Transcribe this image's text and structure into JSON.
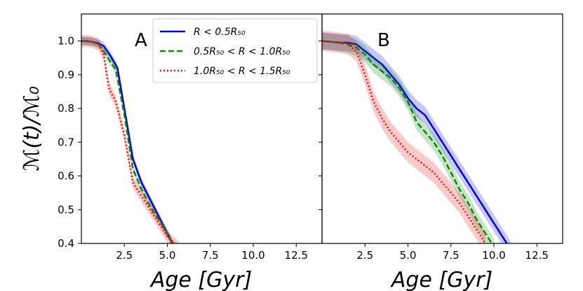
{
  "chart_data": {
    "type": "line",
    "ylabel": "ℳ(t)/ℳ₀",
    "legend": {
      "placement": "top-right of panel A",
      "entries": [
        {
          "label": "R < 0.5R₅₀",
          "color": "#0000dd",
          "style": "solid"
        },
        {
          "label": "0.5R₅₀ < R < 1.0R₅₀",
          "color": "#0a8a0a",
          "style": "dashed"
        },
        {
          "label": "1.0R₅₀ < R < 1.5R₅₀",
          "color": "#ee1111",
          "style": "dotted"
        }
      ]
    },
    "panels": [
      {
        "letter": "A",
        "xlabel": "Age [Gyr]",
        "xlim": [
          0,
          14
        ],
        "ylim": [
          0.4,
          1.08
        ],
        "xticks": [
          "2.5",
          "5.0",
          "7.5",
          "10.0",
          "12.5"
        ],
        "xtick_values": [
          2.5,
          5.0,
          7.5,
          10.0,
          12.5
        ],
        "yticks": [
          "0.4",
          "0.5",
          "0.6",
          "0.7",
          "0.8",
          "0.9",
          "1.0"
        ],
        "ytick_values": [
          0.4,
          0.5,
          0.6,
          0.7,
          0.8,
          0.9,
          1.0
        ],
        "series": [
          {
            "name": "R < 0.5R50",
            "color": "#0000dd",
            "dash": "solid",
            "band": 0.012,
            "x": [
              0,
              0.3,
              0.6,
              1.0,
              1.3,
              1.7,
              2.1,
              2.5,
              3.0,
              3.5,
              4.0,
              4.5,
              5.0,
              5.3,
              5.6
            ],
            "y": [
              1.0,
              1.0,
              0.998,
              0.993,
              0.985,
              0.955,
              0.92,
              0.8,
              0.65,
              0.58,
              0.53,
              0.48,
              0.43,
              0.4,
              0.38
            ]
          },
          {
            "name": "0.5R50 < R < 1.0R50",
            "color": "#0a8a0a",
            "dash": "dashed",
            "band": 0.012,
            "x": [
              0,
              0.3,
              0.6,
              1.0,
              1.3,
              1.6,
              2.0,
              2.5,
              3.0,
              3.5,
              4.0,
              4.5,
              5.0,
              5.3,
              5.6
            ],
            "y": [
              1.0,
              1.0,
              0.998,
              0.99,
              0.97,
              0.945,
              0.915,
              0.78,
              0.62,
              0.56,
              0.51,
              0.47,
              0.43,
              0.4,
              0.38
            ]
          },
          {
            "name": "1.0R50 < R < 1.5R50",
            "color": "#ee1111",
            "dash": "dotted",
            "band": 0.018,
            "x": [
              0,
              0.3,
              0.6,
              1.0,
              1.3,
              1.6,
              2.0,
              2.5,
              3.0,
              3.5,
              4.0,
              4.5,
              5.0,
              5.4,
              5.8
            ],
            "y": [
              1.0,
              1.0,
              0.998,
              0.99,
              0.96,
              0.86,
              0.82,
              0.72,
              0.58,
              0.54,
              0.5,
              0.46,
              0.42,
              0.4,
              0.38
            ]
          }
        ]
      },
      {
        "letter": "B",
        "xlabel": "Age [Gyr]",
        "xlim": [
          0,
          14
        ],
        "ylim": [
          0.4,
          1.08
        ],
        "xticks": [
          "2.5",
          "5.0",
          "7.5",
          "10.0",
          "12.5"
        ],
        "xtick_values": [
          2.5,
          5.0,
          7.5,
          10.0,
          12.5
        ],
        "yticks": [],
        "ytick_values": [
          0.4,
          0.5,
          0.6,
          0.7,
          0.8,
          0.9,
          1.0
        ],
        "series": [
          {
            "name": "R < 0.5R50",
            "color": "#0000dd",
            "dash": "solid",
            "band": 0.025,
            "x": [
              0,
              0.5,
              1.0,
              1.5,
              2.0,
              2.5,
              3.0,
              3.5,
              4.0,
              4.5,
              5.0,
              5.5,
              6.0,
              6.5,
              7.0,
              7.5,
              8.0,
              8.5,
              9.0,
              9.5,
              10.0,
              10.5,
              11.0
            ],
            "y": [
              1.0,
              0.998,
              0.995,
              0.995,
              0.99,
              0.97,
              0.95,
              0.93,
              0.9,
              0.87,
              0.83,
              0.8,
              0.78,
              0.74,
              0.7,
              0.66,
              0.62,
              0.58,
              0.54,
              0.5,
              0.46,
              0.42,
              0.38
            ]
          },
          {
            "name": "0.5R50 < R < 1.0R50",
            "color": "#0a8a0a",
            "dash": "dashed",
            "band": 0.025,
            "x": [
              0,
              0.5,
              1.0,
              1.5,
              2.0,
              2.5,
              3.0,
              3.5,
              4.0,
              4.5,
              5.0,
              5.5,
              6.0,
              6.5,
              7.0,
              7.5,
              8.0,
              8.5,
              9.0,
              9.5,
              10.0
            ],
            "y": [
              1.0,
              0.998,
              0.995,
              0.99,
              0.98,
              0.96,
              0.93,
              0.91,
              0.89,
              0.86,
              0.82,
              0.76,
              0.73,
              0.7,
              0.66,
              0.61,
              0.56,
              0.52,
              0.47,
              0.43,
              0.39
            ]
          },
          {
            "name": "1.0R50 < R < 1.5R50",
            "color": "#ee1111",
            "dash": "dotted",
            "band": 0.03,
            "x": [
              0,
              0.5,
              1.0,
              1.5,
              2.0,
              2.5,
              3.0,
              3.5,
              4.0,
              4.5,
              5.0,
              5.5,
              6.0,
              6.5,
              7.0,
              7.5,
              8.0,
              8.5,
              9.0,
              9.5
            ],
            "y": [
              1.0,
              0.998,
              0.995,
              0.99,
              0.97,
              0.9,
              0.82,
              0.77,
              0.73,
              0.7,
              0.67,
              0.65,
              0.63,
              0.61,
              0.58,
              0.55,
              0.52,
              0.48,
              0.44,
              0.4
            ]
          }
        ]
      }
    ]
  }
}
